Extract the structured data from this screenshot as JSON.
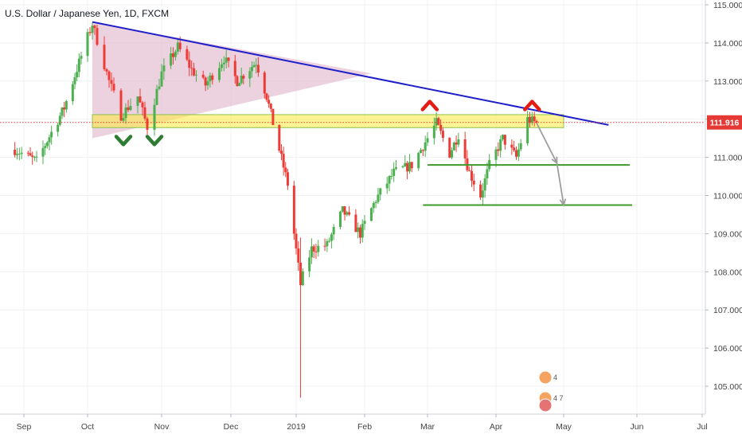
{
  "chart_data": {
    "type": "candlestick",
    "title": "U.S. Dollar / Japanese Yen, 1D, FXCM",
    "y_ticks": [
      "115.000",
      "114.000",
      "113.000",
      "112.000",
      "111.000",
      "110.000",
      "109.000",
      "108.000",
      "107.000",
      "106.000",
      "105.000"
    ],
    "x_ticks": [
      {
        "label": "Sep",
        "date": "2018-09-01"
      },
      {
        "label": "Oct",
        "date": "2018-10-01"
      },
      {
        "label": "Nov",
        "date": "2018-11-01"
      },
      {
        "label": "Dec",
        "date": "2018-12-01"
      },
      {
        "label": "2019",
        "date": "2019-01-01"
      },
      {
        "label": "Feb",
        "date": "2019-02-01"
      },
      {
        "label": "Mar",
        "date": "2019-03-01"
      },
      {
        "label": "Apr",
        "date": "2019-04-01"
      },
      {
        "label": "May",
        "date": "2019-05-01"
      },
      {
        "label": "Jun",
        "date": "2019-06-01"
      },
      {
        "label": "Jul",
        "date": "2019-07-01"
      }
    ],
    "ylim": [
      104.2,
      115.1
    ],
    "last_price": "111.916",
    "last_price_value": 111.916,
    "colors": {
      "up": "#4caf50",
      "down": "#ef3b36",
      "trendline": "#1f1fc9",
      "zone_fill": "#ffeb3b",
      "zone_border": "#8bc34a",
      "support": "#3f9a2a",
      "price_line": "#e53935",
      "projection": "#9e9e9e",
      "triangle": "#e6c1d4",
      "marker_up": "#e51c14",
      "marker_down": "#2e7d32"
    },
    "key_points": [
      {
        "date": "2018-08-28",
        "value": 111.2
      },
      {
        "date": "2018-09-07",
        "value": 110.9
      },
      {
        "date": "2018-09-20",
        "value": 112.3
      },
      {
        "date": "2018-10-03",
        "value": 114.5
      },
      {
        "date": "2018-10-10",
        "value": 113.0
      },
      {
        "date": "2018-10-15",
        "value": 112.1
      },
      {
        "date": "2018-10-22",
        "value": 112.6
      },
      {
        "date": "2018-10-26",
        "value": 111.8
      },
      {
        "date": "2018-11-01",
        "value": 113.2
      },
      {
        "date": "2018-11-08",
        "value": 113.9
      },
      {
        "date": "2018-11-14",
        "value": 113.3
      },
      {
        "date": "2018-11-20",
        "value": 112.9
      },
      {
        "date": "2018-11-28",
        "value": 113.6
      },
      {
        "date": "2018-12-04",
        "value": 113.0
      },
      {
        "date": "2018-12-13",
        "value": 113.5
      },
      {
        "date": "2018-12-18",
        "value": 112.6
      },
      {
        "date": "2018-12-24",
        "value": 111.2
      },
      {
        "date": "2018-12-28",
        "value": 110.3
      },
      {
        "date": "2019-01-03",
        "value": 107.7
      },
      {
        "date": "2019-01-08",
        "value": 108.6
      },
      {
        "date": "2019-01-15",
        "value": 108.7
      },
      {
        "date": "2019-01-22",
        "value": 109.6
      },
      {
        "date": "2019-01-30",
        "value": 109.0
      },
      {
        "date": "2019-02-06",
        "value": 109.9
      },
      {
        "date": "2019-02-14",
        "value": 110.6
      },
      {
        "date": "2019-02-22",
        "value": 110.8
      },
      {
        "date": "2019-03-05",
        "value": 111.9
      },
      {
        "date": "2019-03-11",
        "value": 111.1
      },
      {
        "date": "2019-03-15",
        "value": 111.6
      },
      {
        "date": "2019-03-20",
        "value": 110.6
      },
      {
        "date": "2019-03-25",
        "value": 110.0
      },
      {
        "date": "2019-03-29",
        "value": 110.8
      },
      {
        "date": "2019-04-04",
        "value": 111.5
      },
      {
        "date": "2019-04-10",
        "value": 111.0
      },
      {
        "date": "2019-04-15",
        "value": 112.0
      },
      {
        "date": "2019-04-19",
        "value": 111.9
      }
    ],
    "annotations": {
      "trendline": [
        {
          "date": "2018-10-03",
          "value": 114.55
        },
        {
          "date": "2019-05-20",
          "value": 111.85
        }
      ],
      "resistance_zone": {
        "date_start": "2018-10-03",
        "date_end": "2019-05-01",
        "top": 112.12,
        "bottom": 111.78
      },
      "triangle": [
        {
          "date": "2018-10-03",
          "value": 114.55
        },
        {
          "date": "2018-10-03",
          "value": 111.5
        },
        {
          "date": "2019-02-04",
          "value": 113.2
        }
      ],
      "support_lines": [
        {
          "date_start": "2019-03-01",
          "date_end": "2019-05-29",
          "value": 110.8
        },
        {
          "date_start": "2019-02-27",
          "date_end": "2019-05-30",
          "value": 109.75
        }
      ],
      "projection": [
        {
          "date": "2019-04-19",
          "value": 111.9
        },
        {
          "date": "2019-04-28",
          "value": 110.85
        },
        {
          "date": "2019-05-01",
          "value": 109.75
        }
      ],
      "peak_markers": [
        {
          "date": "2019-03-02",
          "value": 112.4
        },
        {
          "date": "2019-04-17",
          "value": 112.4
        }
      ],
      "trough_markers": [
        {
          "date": "2018-10-16",
          "value": 111.4
        },
        {
          "date": "2018-10-29",
          "value": 111.4
        }
      ]
    },
    "event_badges": [
      {
        "date": "2019-04-25",
        "top_label": "4",
        "bottom_label": "4 7"
      }
    ],
    "grid": true
  }
}
